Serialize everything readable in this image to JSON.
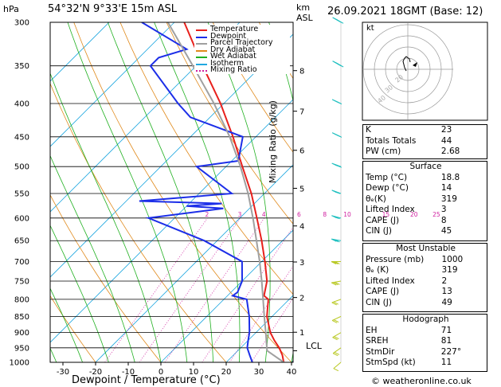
{
  "header": {
    "hpa_label": "hPa",
    "location": "54°32'N  9°33'E  15m  ASL",
    "km_label": "km",
    "asl_label": "ASL",
    "datetime": "26.09.2021  18GMT  (Base: 12)"
  },
  "axes": {
    "xlabel": "Dewpoint / Temperature (°C)",
    "mixing_ratio_label": "Mixing Ratio (g/kg)",
    "lcl_label": "LCL"
  },
  "legend": [
    {
      "label": "Temperature",
      "color": "#e8201c"
    },
    {
      "label": "Dewpoint",
      "color": "#1c2ee8"
    },
    {
      "label": "Parcel Trajectory",
      "color": "#a0a0a0"
    },
    {
      "label": "Dry Adiabat",
      "color": "#e08a1c"
    },
    {
      "label": "Wet Adiabat",
      "color": "#20b020"
    },
    {
      "label": "Isotherm",
      "color": "#20a8e0"
    },
    {
      "label": "Mixing Ratio",
      "color": "#d020a0"
    }
  ],
  "hodograph": {
    "kt_label": "kt",
    "ring_labels": [
      "40",
      "30",
      "20"
    ]
  },
  "indices": {
    "top": [
      {
        "label": "K",
        "value": "23"
      },
      {
        "label": "Totals Totals",
        "value": "44"
      },
      {
        "label": "PW (cm)",
        "value": "2.68"
      }
    ],
    "surface": {
      "title": "Surface",
      "rows": [
        {
          "label": "Temp (°C)",
          "value": "18.8"
        },
        {
          "label": "Dewp (°C)",
          "value": "14"
        },
        {
          "label": "θₑ(K)",
          "value": "319"
        },
        {
          "label": "Lifted Index",
          "value": "3"
        },
        {
          "label": "CAPE (J)",
          "value": "8"
        },
        {
          "label": "CIN (J)",
          "value": "45"
        }
      ]
    },
    "unstable": {
      "title": "Most Unstable",
      "rows": [
        {
          "label": "Pressure (mb)",
          "value": "1000"
        },
        {
          "label": "θₑ (K)",
          "value": "319"
        },
        {
          "label": "Lifted Index",
          "value": "2"
        },
        {
          "label": "CAPE (J)",
          "value": "13"
        },
        {
          "label": "CIN (J)",
          "value": "49"
        }
      ]
    },
    "hodograph": {
      "title": "Hodograph",
      "rows": [
        {
          "label": "EH",
          "value": "71"
        },
        {
          "label": "SREH",
          "value": "81"
        },
        {
          "label": "StmDir",
          "value": "227°"
        },
        {
          "label": "StmSpd (kt)",
          "value": "11"
        }
      ]
    }
  },
  "copyright": "© weatheronline.co.uk",
  "chart_data": {
    "type": "line",
    "title": "54°32'N  9°33'E  15m  ASL",
    "xlabel": "Dewpoint / Temperature (°C)",
    "ylabel": "hPa",
    "xlim": [
      -35,
      40
    ],
    "ylim": [
      1000,
      300
    ],
    "x_ticks": [
      "-30",
      "-20",
      "-10",
      "0",
      "10",
      "20",
      "30",
      "40"
    ],
    "pressure_ticks": [
      "300",
      "350",
      "400",
      "450",
      "500",
      "550",
      "600",
      "650",
      "700",
      "750",
      "800",
      "850",
      "900",
      "950",
      "1000"
    ],
    "km_ticks": [
      {
        "label": "8",
        "p": 356
      },
      {
        "label": "7",
        "p": 411
      },
      {
        "label": "6",
        "p": 472
      },
      {
        "label": "5",
        "p": 540
      },
      {
        "label": "4",
        "p": 617
      },
      {
        "label": "3",
        "p": 701
      },
      {
        "label": "2",
        "p": 795
      },
      {
        "label": "1",
        "p": 899
      }
    ],
    "mixing_ratio_labels": [
      "2",
      "3",
      "4",
      "6",
      "8",
      "10",
      "15",
      "20",
      "25"
    ],
    "series": [
      {
        "name": "Temperature",
        "color": "#e8201c",
        "p": [
          1000,
          975,
          950,
          925,
          900,
          850,
          800,
          790,
          750,
          700,
          650,
          600,
          550,
          500,
          450,
          400,
          350,
          300
        ],
        "t": [
          18.8,
          17.5,
          15.9,
          14.0,
          12.2,
          9.2,
          6.8,
          5.6,
          3.8,
          0.5,
          -3.2,
          -7.4,
          -12.0,
          -17.5,
          -23.5,
          -30.5,
          -39.0,
          -48.5
        ]
      },
      {
        "name": "Dewpoint",
        "color": "#1c2ee8",
        "p": [
          1000,
          975,
          950,
          925,
          900,
          850,
          800,
          790,
          780,
          750,
          700,
          650,
          600,
          580,
          575,
          570,
          565,
          550,
          500,
          490,
          450,
          420,
          400,
          350,
          340,
          330,
          300
        ],
        "t": [
          14.0,
          12.5,
          11.0,
          10.0,
          9.0,
          6.5,
          3.5,
          0.8,
          1.0,
          0.0,
          -3.0,
          -12.0,
          -24.0,
          -14.0,
          -20.0,
          -15.0,
          -28.0,
          -15.0,
          -24.5,
          -19.0,
          -22.0,
          -33.0,
          -37.0,
          -47.0,
          -47.0,
          -44.0,
          -55.0
        ]
      },
      {
        "name": "Parcel Trajectory",
        "color": "#a0a0a0",
        "p": [
          1000,
          960,
          950,
          900,
          850,
          800,
          750,
          700,
          650,
          600,
          550,
          500,
          450,
          400,
          350,
          300
        ],
        "t": [
          18.8,
          14.5,
          14.0,
          11.5,
          8.8,
          6.0,
          3.0,
          -0.3,
          -4.0,
          -8.0,
          -12.5,
          -17.8,
          -24.0,
          -31.5,
          -40.5,
          -51.0
        ]
      }
    ],
    "lcl_p": 960,
    "wind_barbs": [
      {
        "p": 1000,
        "dir": 230,
        "spd": 10
      },
      {
        "p": 950,
        "dir": 235,
        "spd": 15
      },
      {
        "p": 900,
        "dir": 240,
        "spd": 15
      },
      {
        "p": 850,
        "dir": 245,
        "spd": 20
      },
      {
        "p": 800,
        "dir": 250,
        "spd": 20
      },
      {
        "p": 750,
        "dir": 260,
        "spd": 25
      },
      {
        "p": 700,
        "dir": 270,
        "spd": 25
      },
      {
        "p": 650,
        "dir": 280,
        "spd": 25
      },
      {
        "p": 600,
        "dir": 285,
        "spd": 25
      },
      {
        "p": 550,
        "dir": 290,
        "spd": 30
      },
      {
        "p": 500,
        "dir": 290,
        "spd": 35
      },
      {
        "p": 450,
        "dir": 295,
        "spd": 35
      },
      {
        "p": 400,
        "dir": 295,
        "spd": 40
      },
      {
        "p": 350,
        "dir": 300,
        "spd": 45
      },
      {
        "p": 300,
        "dir": 300,
        "spd": 45
      }
    ],
    "hodograph_uv": [
      [
        -2,
        -2
      ],
      [
        -4,
        2
      ],
      [
        -5,
        6
      ],
      [
        -6,
        10
      ],
      [
        -4,
        14
      ],
      [
        -2,
        16
      ],
      [
        2,
        13
      ],
      [
        3,
        9
      ]
    ]
  }
}
